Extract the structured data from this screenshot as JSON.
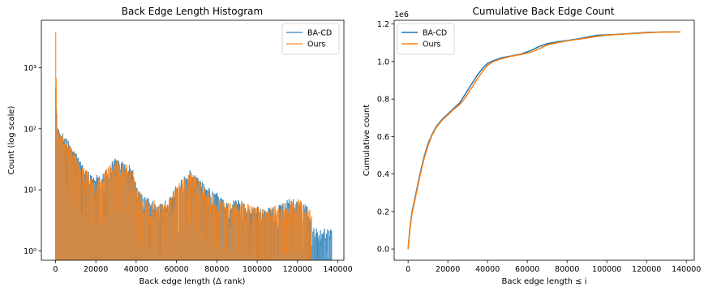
{
  "chart_data": [
    {
      "type": "histogram",
      "title": "Back Edge Length Histogram",
      "xlabel": "Back edge length (Δ rank)",
      "ylabel": "Count (log scale)",
      "yscale": "log",
      "xlim": [
        -7000,
        143000
      ],
      "ylim": [
        0.7,
        6000
      ],
      "xticks": [
        0,
        20000,
        40000,
        60000,
        80000,
        100000,
        120000,
        140000
      ],
      "xtick_labels": [
        "0",
        "20000",
        "40000",
        "60000",
        "80000",
        "100000",
        "120000",
        "140000"
      ],
      "yticks": [
        1,
        10,
        100,
        1000
      ],
      "ytick_labels": [
        "10⁰",
        "10¹",
        "10²",
        "10³"
      ],
      "legend_position": "top-right",
      "series": [
        {
          "name": "BA-CD",
          "color": "#1f77b4",
          "envelope": [
            [
              0,
              480
            ],
            [
              600,
              120
            ],
            [
              2000,
              80
            ],
            [
              5000,
              60
            ],
            [
              8000,
              45
            ],
            [
              11000,
              30
            ],
            [
              14000,
              20
            ],
            [
              18000,
              14
            ],
            [
              22000,
              16
            ],
            [
              26000,
              22
            ],
            [
              30000,
              28
            ],
            [
              34000,
              26
            ],
            [
              38000,
              20
            ],
            [
              40000,
              10
            ],
            [
              43000,
              7
            ],
            [
              47000,
              6
            ],
            [
              52000,
              5
            ],
            [
              56000,
              6
            ],
            [
              60000,
              10
            ],
            [
              64000,
              14
            ],
            [
              67000,
              18
            ],
            [
              70000,
              14
            ],
            [
              74000,
              10
            ],
            [
              78000,
              8
            ],
            [
              82000,
              7
            ],
            [
              86000,
              5
            ],
            [
              90000,
              6
            ],
            [
              96000,
              5
            ],
            [
              104000,
              4
            ],
            [
              112000,
              5
            ],
            [
              116000,
              6
            ],
            [
              120000,
              6
            ],
            [
              124000,
              5
            ],
            [
              126000,
              4
            ],
            [
              128000,
              2
            ],
            [
              137000,
              2
            ]
          ],
          "extent": [
            0,
            137000
          ]
        },
        {
          "name": "Ours",
          "color": "#ff7f0e",
          "envelope": [
            [
              0,
              3800
            ],
            [
              600,
              100
            ],
            [
              2000,
              75
            ],
            [
              5000,
              58
            ],
            [
              8000,
              42
            ],
            [
              11000,
              28
            ],
            [
              14000,
              20
            ],
            [
              18000,
              13
            ],
            [
              22000,
              15
            ],
            [
              26000,
              20
            ],
            [
              30000,
              26
            ],
            [
              34000,
              24
            ],
            [
              38000,
              18
            ],
            [
              40000,
              10
            ],
            [
              43000,
              7
            ],
            [
              47000,
              6
            ],
            [
              52000,
              5
            ],
            [
              56000,
              6
            ],
            [
              60000,
              10
            ],
            [
              64000,
              14
            ],
            [
              67000,
              16
            ],
            [
              70000,
              13
            ],
            [
              74000,
              9
            ],
            [
              78000,
              7
            ],
            [
              82000,
              6
            ],
            [
              86000,
              5
            ],
            [
              90000,
              5
            ],
            [
              96000,
              5
            ],
            [
              104000,
              4
            ],
            [
              112000,
              5
            ],
            [
              116000,
              5
            ],
            [
              120000,
              6
            ],
            [
              124000,
              5
            ],
            [
              126000,
              4
            ],
            [
              127000,
              3
            ]
          ],
          "extent": [
            0,
            127000
          ]
        }
      ]
    },
    {
      "type": "line",
      "title": "Cumulative Back Edge Count",
      "xlabel": "Back edge length ≤ i",
      "ylabel": "Cumulative count",
      "scale_label": "1e6",
      "xlim": [
        -7000,
        144000
      ],
      "ylim": [
        -0.06,
        1.22
      ],
      "xticks": [
        0,
        20000,
        40000,
        60000,
        80000,
        100000,
        120000,
        140000
      ],
      "xtick_labels": [
        "0",
        "20000",
        "40000",
        "60000",
        "80000",
        "100000",
        "120000",
        "140000"
      ],
      "yticks": [
        0.0,
        0.2,
        0.4,
        0.6,
        0.8,
        1.0,
        1.2
      ],
      "ytick_labels": [
        "0.0",
        "0.2",
        "0.4",
        "0.6",
        "0.8",
        "1.0",
        "1.2"
      ],
      "legend_position": "top-left",
      "series": [
        {
          "name": "BA-CD",
          "color": "#1f77b4",
          "points": [
            [
              0,
              0.0
            ],
            [
              1000,
              0.12
            ],
            [
              2000,
              0.2
            ],
            [
              4000,
              0.3
            ],
            [
              6000,
              0.4
            ],
            [
              8000,
              0.49
            ],
            [
              10000,
              0.56
            ],
            [
              12000,
              0.61
            ],
            [
              14000,
              0.65
            ],
            [
              17000,
              0.69
            ],
            [
              20000,
              0.72
            ],
            [
              23000,
              0.75
            ],
            [
              26000,
              0.78
            ],
            [
              29000,
              0.83
            ],
            [
              32000,
              0.88
            ],
            [
              35000,
              0.93
            ],
            [
              38000,
              0.97
            ],
            [
              40000,
              0.99
            ],
            [
              43000,
              1.005
            ],
            [
              47000,
              1.02
            ],
            [
              52000,
              1.03
            ],
            [
              57000,
              1.04
            ],
            [
              62000,
              1.06
            ],
            [
              66000,
              1.08
            ],
            [
              70000,
              1.095
            ],
            [
              75000,
              1.105
            ],
            [
              80000,
              1.112
            ],
            [
              85000,
              1.12
            ],
            [
              90000,
              1.13
            ],
            [
              95000,
              1.14
            ],
            [
              100000,
              1.142
            ],
            [
              110000,
              1.148
            ],
            [
              120000,
              1.155
            ],
            [
              130000,
              1.158
            ],
            [
              137000,
              1.158
            ]
          ]
        },
        {
          "name": "Ours",
          "color": "#ff7f0e",
          "points": [
            [
              0,
              0.0
            ],
            [
              1000,
              0.11
            ],
            [
              2000,
              0.19
            ],
            [
              4000,
              0.29
            ],
            [
              6000,
              0.39
            ],
            [
              8000,
              0.48
            ],
            [
              10000,
              0.55
            ],
            [
              12000,
              0.605
            ],
            [
              14000,
              0.645
            ],
            [
              17000,
              0.685
            ],
            [
              20000,
              0.715
            ],
            [
              23000,
              0.745
            ],
            [
              26000,
              0.77
            ],
            [
              29000,
              0.81
            ],
            [
              32000,
              0.86
            ],
            [
              35000,
              0.91
            ],
            [
              38000,
              0.955
            ],
            [
              40000,
              0.98
            ],
            [
              43000,
              1.0
            ],
            [
              47000,
              1.015
            ],
            [
              52000,
              1.028
            ],
            [
              57000,
              1.038
            ],
            [
              62000,
              1.05
            ],
            [
              66000,
              1.068
            ],
            [
              70000,
              1.088
            ],
            [
              75000,
              1.1
            ],
            [
              80000,
              1.11
            ],
            [
              85000,
              1.118
            ],
            [
              90000,
              1.125
            ],
            [
              95000,
              1.134
            ],
            [
              100000,
              1.14
            ],
            [
              110000,
              1.147
            ],
            [
              120000,
              1.153
            ],
            [
              127000,
              1.157
            ],
            [
              137000,
              1.158
            ]
          ]
        }
      ]
    }
  ]
}
